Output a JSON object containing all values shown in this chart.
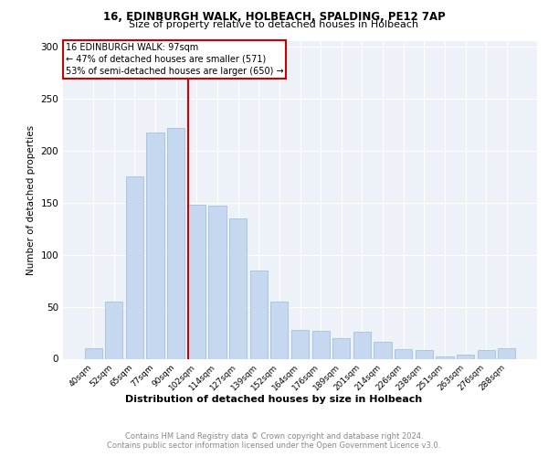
{
  "title1": "16, EDINBURGH WALK, HOLBEACH, SPALDING, PE12 7AP",
  "title2": "Size of property relative to detached houses in Holbeach",
  "xlabel": "Distribution of detached houses by size in Holbeach",
  "ylabel": "Number of detached properties",
  "categories": [
    "40sqm",
    "52sqm",
    "65sqm",
    "77sqm",
    "90sqm",
    "102sqm",
    "114sqm",
    "127sqm",
    "139sqm",
    "152sqm",
    "164sqm",
    "176sqm",
    "189sqm",
    "201sqm",
    "214sqm",
    "226sqm",
    "238sqm",
    "251sqm",
    "263sqm",
    "276sqm",
    "288sqm"
  ],
  "values": [
    10,
    55,
    175,
    217,
    222,
    148,
    147,
    135,
    85,
    55,
    28,
    27,
    20,
    26,
    16,
    9,
    8,
    2,
    4,
    8,
    10
  ],
  "bar_color": "#c5d8f0",
  "bar_edge_color": "#9ab8d8",
  "vline_color": "#cc0000",
  "annotation_lines": [
    "16 EDINBURGH WALK: 97sqm",
    "← 47% of detached houses are smaller (571)",
    "53% of semi-detached houses are larger (650) →"
  ],
  "annotation_box_color": "#cc0000",
  "footer_text": "Contains HM Land Registry data © Crown copyright and database right 2024.\nContains public sector information licensed under the Open Government Licence v3.0.",
  "ylim": [
    0,
    305
  ],
  "yticks": [
    0,
    50,
    100,
    150,
    200,
    250,
    300
  ],
  "background_color": "#edf2f9",
  "grid_color": "#ffffff"
}
